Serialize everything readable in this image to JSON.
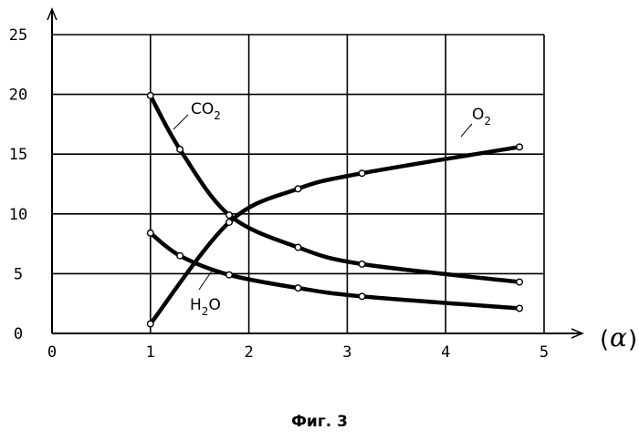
{
  "caption": "Фиг. 3",
  "chart_data": {
    "type": "line",
    "title": "",
    "xlabel": "α",
    "ylabel": "",
    "xlim": [
      0,
      5
    ],
    "ylim": [
      0,
      25
    ],
    "xticks": [
      "0",
      "1",
      "2",
      "3",
      "4",
      "5"
    ],
    "yticks": [
      "0",
      "5",
      "10",
      "15",
      "20",
      "25"
    ],
    "grid": true,
    "series": [
      {
        "name": "CO2",
        "label_main": "CO",
        "label_sub": "2",
        "x": [
          1.0,
          1.3,
          1.8,
          2.5,
          3.15,
          4.75
        ],
        "y": [
          19.9,
          15.4,
          9.9,
          7.2,
          5.8,
          4.3
        ]
      },
      {
        "name": "O2",
        "label_main": "O",
        "label_sub": "2",
        "x": [
          1.0,
          1.8,
          2.5,
          3.15,
          4.75
        ],
        "y": [
          0.8,
          9.3,
          12.1,
          13.4,
          15.6
        ]
      },
      {
        "name": "H2O",
        "label_main": "H",
        "label_sub": "2",
        "label_tail": "O",
        "x": [
          1.0,
          1.3,
          1.8,
          2.5,
          3.15,
          4.75
        ],
        "y": [
          8.4,
          6.5,
          4.9,
          3.8,
          3.1,
          2.1
        ]
      }
    ]
  }
}
